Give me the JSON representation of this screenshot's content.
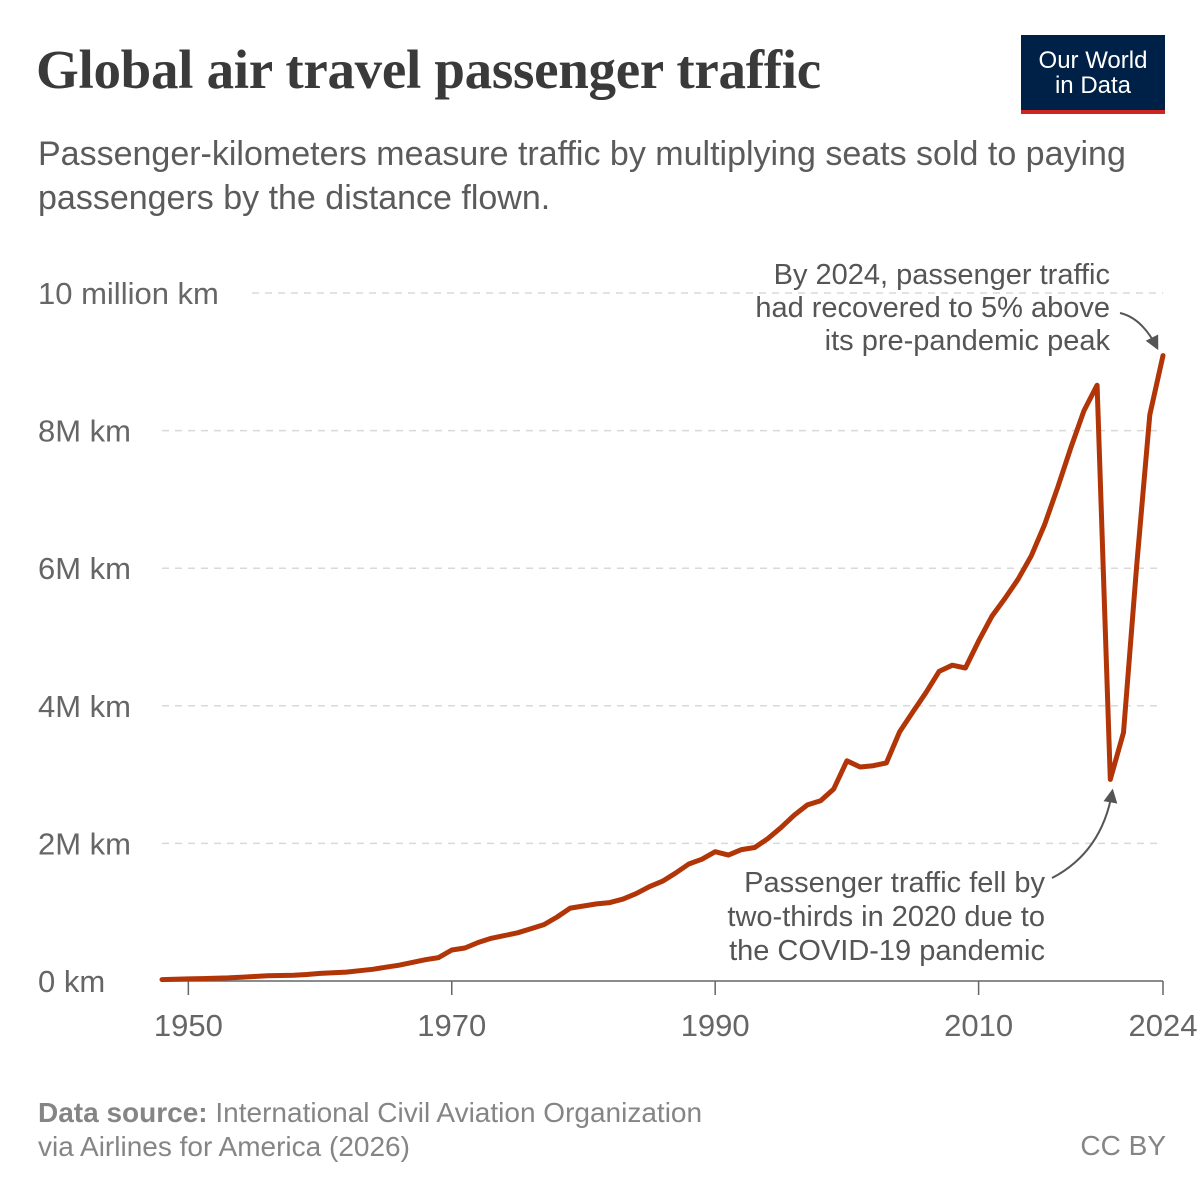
{
  "title": "Global air travel passenger traffic",
  "subtitle": "Passenger-kilometers measure traffic by multiplying seats sold to paying passengers by the distance flown.",
  "logo": {
    "line1": "Our World",
    "line2": "in Data",
    "bg_color": "#002147",
    "accent_color": "#ce261e"
  },
  "footer": {
    "source_label": "Data source:",
    "source_text": "International Civil Aviation Organization",
    "source_text_line2": "via Airlines for America (2026)",
    "license": "CC BY"
  },
  "chart_data": {
    "type": "line",
    "line_color": "#b13507",
    "x_ticks": [
      {
        "value": 1950,
        "label": "1950"
      },
      {
        "value": 1970,
        "label": "1970"
      },
      {
        "value": 1990,
        "label": "1990"
      },
      {
        "value": 2010,
        "label": "2010"
      },
      {
        "value": 2024,
        "label": "2024"
      }
    ],
    "y_ticks": [
      {
        "value": 0,
        "label": "0 km"
      },
      {
        "value": 2000000,
        "label": "2M km"
      },
      {
        "value": 4000000,
        "label": "4M km"
      },
      {
        "value": 6000000,
        "label": "6M km"
      },
      {
        "value": 8000000,
        "label": "8M km"
      },
      {
        "value": 10000000,
        "label": "10 million km"
      }
    ],
    "xlim": [
      1948,
      2024
    ],
    "ylim": [
      0,
      10000000
    ],
    "grid": "horizontal-dashed",
    "series": [
      {
        "x": [
          1948,
          1949,
          1950,
          1951,
          1952,
          1953,
          1954,
          1955,
          1956,
          1957,
          1958,
          1959,
          1960,
          1961,
          1962,
          1963,
          1964,
          1965,
          1966,
          1967,
          1968,
          1969,
          1970,
          1971,
          1972,
          1973,
          1974,
          1975,
          1976,
          1977,
          1978,
          1979,
          1980,
          1981,
          1982,
          1983,
          1984,
          1985,
          1986,
          1987,
          1988,
          1989,
          1990,
          1991,
          1992,
          1993,
          1994,
          1995,
          1996,
          1997,
          1998,
          1999,
          2000,
          2001,
          2002,
          2003,
          2004,
          2005,
          2006,
          2007,
          2008,
          2009,
          2010,
          2011,
          2012,
          2013,
          2014,
          2015,
          2016,
          2017,
          2018,
          2019,
          2020,
          2021,
          2022,
          2023,
          2024
        ],
        "y": [
          20000,
          25000,
          30000,
          35000,
          40000,
          45000,
          55000,
          65000,
          75000,
          80000,
          85000,
          95000,
          110000,
          120000,
          130000,
          150000,
          170000,
          200000,
          230000,
          270000,
          310000,
          340000,
          450000,
          480000,
          560000,
          620000,
          660000,
          700000,
          760000,
          820000,
          930000,
          1060000,
          1090000,
          1120000,
          1140000,
          1190000,
          1270000,
          1370000,
          1450000,
          1570000,
          1700000,
          1770000,
          1880000,
          1830000,
          1910000,
          1940000,
          2070000,
          2230000,
          2410000,
          2560000,
          2620000,
          2790000,
          3200000,
          3110000,
          3130000,
          3170000,
          3620000,
          3910000,
          4190000,
          4500000,
          4590000,
          4550000,
          4940000,
          5300000,
          5560000,
          5840000,
          6180000,
          6630000,
          7170000,
          7750000,
          8290000,
          8660000,
          2930000,
          3610000,
          6040000,
          8230000,
          9090000
        ]
      }
    ],
    "annotations": [
      {
        "id": "recovery",
        "lines": [
          "By 2024, passenger traffic",
          "had recovered to 5% above",
          "its pre-pandemic peak"
        ],
        "target_x": 2024,
        "target_y": 9090000
      },
      {
        "id": "covid",
        "lines": [
          "Passenger traffic fell by",
          "two-thirds in 2020 due to",
          "the COVID-19 pandemic"
        ],
        "target_x": 2020,
        "target_y": 2930000
      }
    ]
  }
}
